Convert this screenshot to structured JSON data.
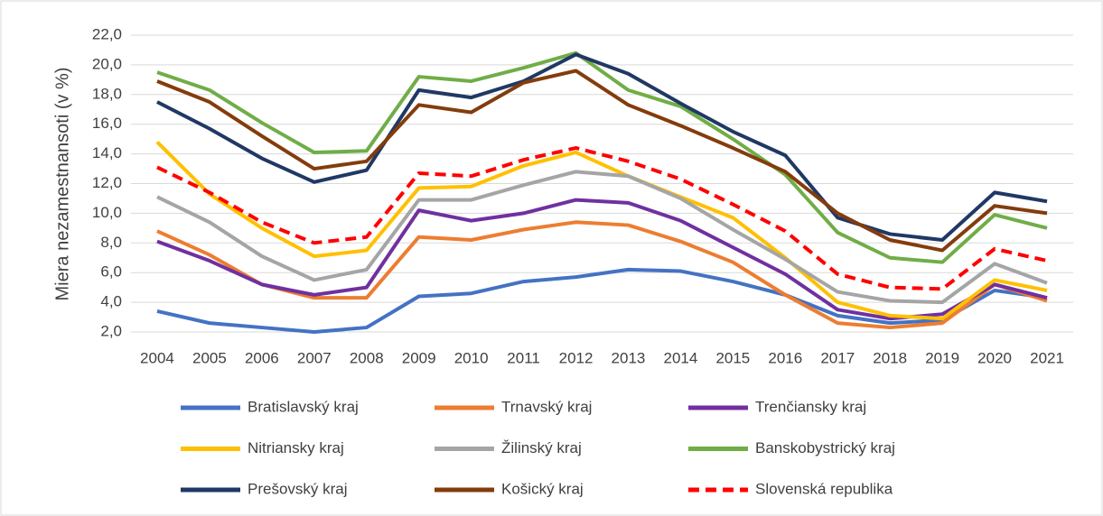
{
  "chart_data": {
    "type": "line",
    "y_label": "Miera nezamestnansoti (v %)",
    "categories": [
      "2004",
      "2005",
      "2006",
      "2007",
      "2008",
      "2009",
      "2010",
      "2011",
      "2012",
      "2013",
      "2014",
      "2015",
      "2016",
      "2017",
      "2018",
      "2019",
      "2020",
      "2021"
    ],
    "ylim": [
      2,
      22
    ],
    "yticks": [
      {
        "value": 2,
        "label": "2,0"
      },
      {
        "value": 4,
        "label": "4,0"
      },
      {
        "value": 6,
        "label": "6,0"
      },
      {
        "value": 8,
        "label": "8,0"
      },
      {
        "value": 10,
        "label": "10,0"
      },
      {
        "value": 12,
        "label": "12,0"
      },
      {
        "value": 14,
        "label": "14,0"
      },
      {
        "value": 16,
        "label": "16,0"
      },
      {
        "value": 18,
        "label": "18,0"
      },
      {
        "value": 20,
        "label": "20,0"
      },
      {
        "value": 22,
        "label": "22,0"
      }
    ],
    "grid": true,
    "legend": "bottom",
    "series": [
      {
        "name": "Bratislavský kraj",
        "color": "#4472c4",
        "values": [
          3.4,
          2.6,
          2.3,
          2.0,
          2.3,
          4.4,
          4.6,
          5.4,
          5.7,
          6.2,
          6.1,
          5.4,
          4.5,
          3.1,
          2.6,
          2.8,
          4.8,
          4.3
        ]
      },
      {
        "name": "Trnavský kraj",
        "color": "#ed7d31",
        "values": [
          8.8,
          7.2,
          5.2,
          4.3,
          4.3,
          8.4,
          8.2,
          8.9,
          9.4,
          9.2,
          8.1,
          6.7,
          4.5,
          2.6,
          2.3,
          2.6,
          5.2,
          4.1
        ]
      },
      {
        "name": "Trenčiansky kraj",
        "color": "#7030a0",
        "values": [
          8.1,
          6.8,
          5.2,
          4.5,
          5.0,
          10.2,
          9.5,
          10.0,
          10.9,
          10.7,
          9.5,
          7.7,
          5.9,
          3.5,
          2.9,
          3.2,
          5.2,
          4.3
        ]
      },
      {
        "name": "Nitriansky kraj",
        "color": "#ffc000",
        "values": [
          14.8,
          11.3,
          9.0,
          7.1,
          7.5,
          11.7,
          11.8,
          13.2,
          14.1,
          12.5,
          11.1,
          9.7,
          7.0,
          4.0,
          3.1,
          2.9,
          5.5,
          4.8
        ]
      },
      {
        "name": "Žilinský kraj",
        "color": "#a5a5a5",
        "values": [
          11.1,
          9.4,
          7.1,
          5.5,
          6.2,
          10.9,
          10.9,
          11.9,
          12.8,
          12.5,
          11.0,
          8.9,
          6.9,
          4.7,
          4.1,
          4.0,
          6.6,
          5.3
        ]
      },
      {
        "name": "Banskobystrický kraj",
        "color": "#70ad47",
        "values": [
          19.5,
          18.3,
          16.1,
          14.1,
          14.2,
          19.2,
          18.9,
          19.8,
          20.8,
          18.3,
          17.2,
          15.0,
          12.6,
          8.7,
          7.0,
          6.7,
          9.9,
          9.0
        ]
      },
      {
        "name": "Prešovský kraj",
        "color": "#203864",
        "values": [
          17.5,
          15.7,
          13.7,
          12.1,
          12.9,
          18.3,
          17.8,
          18.9,
          20.7,
          19.4,
          17.4,
          15.5,
          13.9,
          9.7,
          8.6,
          8.2,
          11.4,
          10.8
        ]
      },
      {
        "name": "Košický kraj",
        "color": "#843c0c",
        "values": [
          18.9,
          17.5,
          15.2,
          13.0,
          13.5,
          17.3,
          16.8,
          18.8,
          19.6,
          17.3,
          15.9,
          14.4,
          12.8,
          10.0,
          8.2,
          7.5,
          10.5,
          10.0
        ]
      },
      {
        "name": "Slovenská republika",
        "color": "#ff0000",
        "dashed": true,
        "values": [
          13.1,
          11.4,
          9.4,
          8.0,
          8.4,
          12.7,
          12.5,
          13.6,
          14.4,
          13.5,
          12.3,
          10.6,
          8.8,
          5.9,
          5.0,
          4.9,
          7.6,
          6.8
        ]
      }
    ]
  }
}
